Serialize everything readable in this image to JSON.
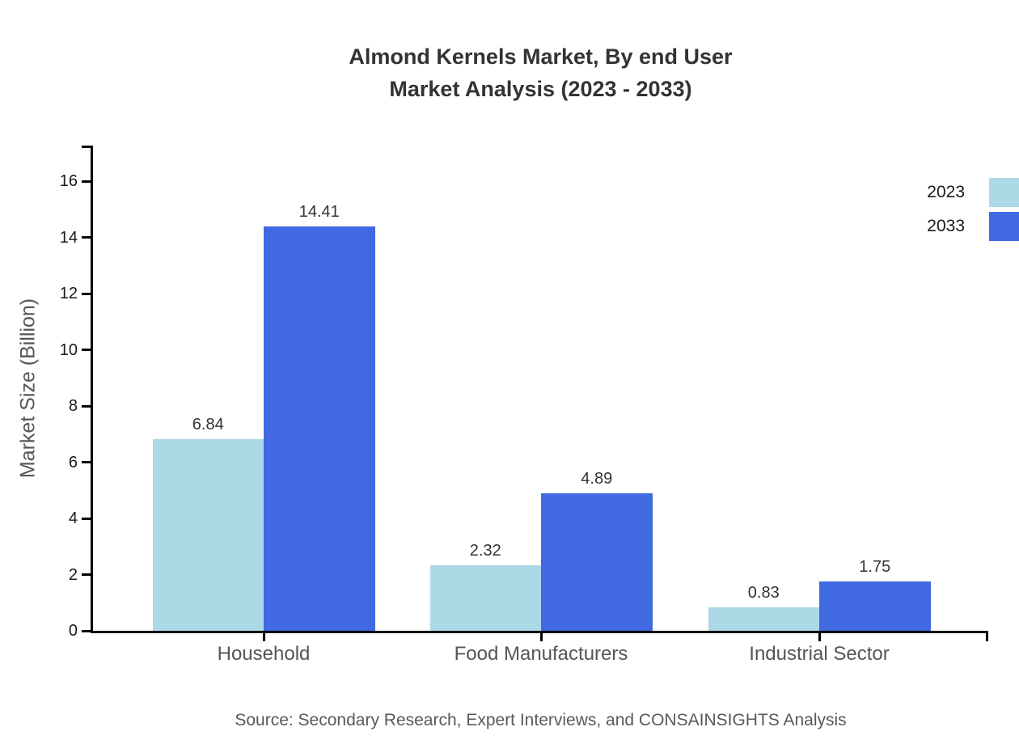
{
  "title": {
    "line1": "Almond Kernels Market, By end User",
    "line2": "Market Analysis (2023 - 2033)"
  },
  "source": "Source: Secondary Research, Expert Interviews, and CONSAINSIGHTS Analysis",
  "chart_data": {
    "type": "bar",
    "title": "Almond Kernels Market, By end User Market Analysis (2023 - 2033)",
    "categories": [
      "Household",
      "Food Manufacturers",
      "Industrial Sector"
    ],
    "series": [
      {
        "name": "2023",
        "color": "#ADD8E6",
        "values": [
          6.84,
          2.32,
          0.83
        ]
      },
      {
        "name": "2033",
        "color": "#4169E1",
        "values": [
          14.41,
          4.89,
          1.75
        ]
      }
    ],
    "xlabel": "",
    "ylabel": "Market Size (Billion)",
    "ylim": [
      0,
      17.3
    ],
    "yticks": [
      0,
      2,
      4,
      6,
      8,
      10,
      12,
      14,
      16
    ],
    "grid": false,
    "legend_position": "top-right",
    "value_labels": true,
    "axis_color": "#000000"
  }
}
